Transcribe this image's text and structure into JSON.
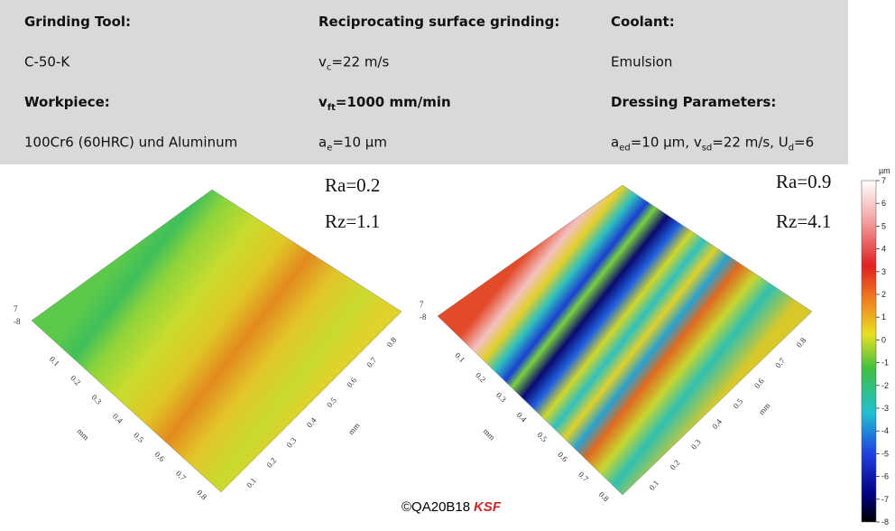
{
  "table": {
    "rows": [
      [
        [
          {
            "text": "Grinding Tool:"
          }
        ],
        [
          {
            "text": "Reciprocating surface grinding:"
          }
        ],
        [
          {
            "text": "Coolant:"
          }
        ]
      ],
      [
        [
          {
            "text": "C-50-K"
          }
        ],
        [
          {
            "text": "v"
          },
          {
            "sub": "c"
          },
          {
            "text": "=22 m/s"
          }
        ],
        [
          {
            "text": "Emulsion"
          }
        ]
      ],
      [
        [
          {
            "text": "Workpiece:"
          }
        ],
        [
          {
            "text": "v"
          },
          {
            "sub": "ft"
          },
          {
            "text": "=1000 mm/min"
          }
        ],
        [
          {
            "text": "Dressing Parameters:"
          }
        ]
      ],
      [
        [
          {
            "text": "100Cr6 (60HRC) und Aluminum"
          }
        ],
        [
          {
            "text": "a"
          },
          {
            "sub": "e"
          },
          {
            "text": "=10 µm"
          }
        ],
        [
          {
            "text": "a"
          },
          {
            "sub": "ed"
          },
          {
            "text": "=10 µm, v"
          },
          {
            "sub": "sd"
          },
          {
            "text": "=22 m/s, U"
          },
          {
            "sub": "d"
          },
          {
            "text": "=6"
          }
        ]
      ]
    ]
  },
  "surfaces": [
    {
      "ra": "Ra=0.2",
      "rz": "Rz=1.1",
      "axis_label": "mm",
      "x_ticks": [
        0.1,
        0.2,
        0.3,
        0.4,
        0.5,
        0.6,
        0.7,
        0.8
      ],
      "y_ticks": [
        0.1,
        0.2,
        0.3,
        0.4,
        0.5,
        0.6,
        0.7,
        0.8
      ],
      "z_ticks": [
        7,
        -8
      ]
    },
    {
      "ra": "Ra=0.9",
      "rz": "Rz=4.1",
      "axis_label": "mm",
      "x_ticks": [
        0.1,
        0.2,
        0.3,
        0.4,
        0.5,
        0.6,
        0.7,
        0.8
      ],
      "y_ticks": [
        0.1,
        0.2,
        0.3,
        0.4,
        0.5,
        0.6,
        0.7,
        0.8
      ],
      "z_ticks": [
        7,
        -8
      ]
    }
  ],
  "colorbar": {
    "unit": "µm",
    "lim": [
      -8,
      7
    ],
    "ticks": [
      7,
      6,
      5,
      4,
      3,
      2,
      1,
      0,
      -1,
      -2,
      -3,
      -4,
      -5,
      -6,
      -7,
      -8
    ]
  },
  "footer": {
    "copyright": "©QA20B18",
    "logo": "KSF"
  }
}
